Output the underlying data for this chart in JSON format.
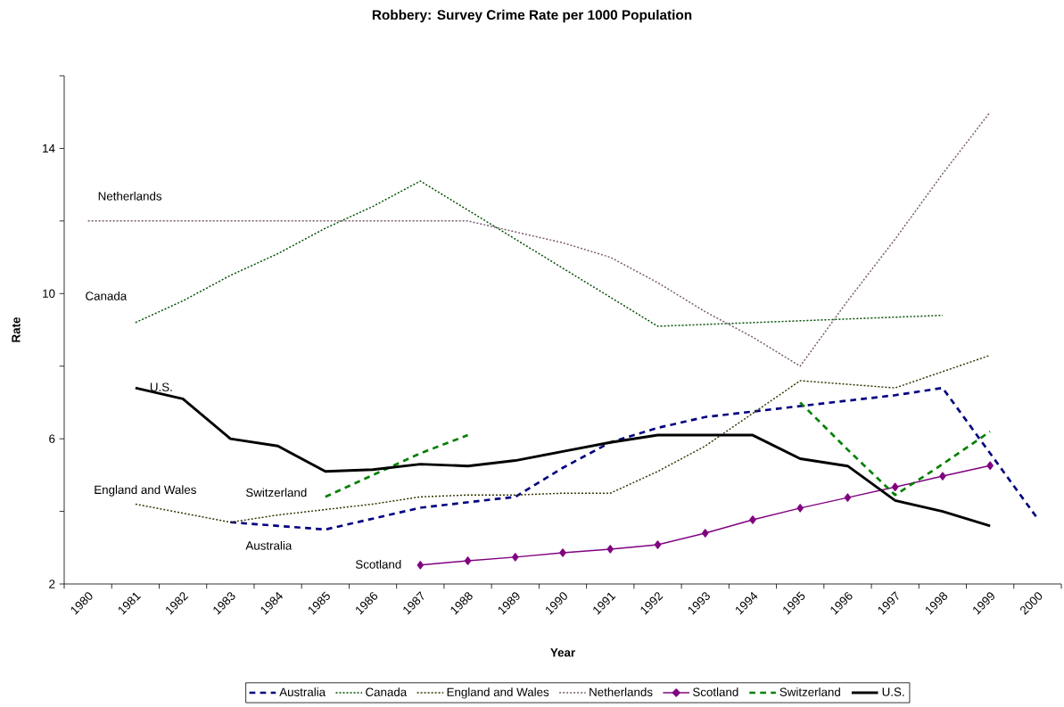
{
  "chart_data": {
    "type": "line",
    "title": "Robbery: Survey Crime Rate per 1000 Population",
    "xlabel": "Year",
    "ylabel": "Rate",
    "categories": [
      "1980",
      "1981",
      "1982",
      "1983",
      "1984",
      "1985",
      "1986",
      "1987",
      "1988",
      "1989",
      "1990",
      "1991",
      "1992",
      "1993",
      "1994",
      "1995",
      "1996",
      "1997",
      "1998",
      "1999",
      "2000"
    ],
    "ylim": [
      2,
      16
    ],
    "yticks": [
      2,
      {
        "value": 4,
        "label": null
      },
      6,
      {
        "value": 8,
        "label": null
      },
      10,
      {
        "value": 12,
        "label": null
      },
      14,
      {
        "value": 16,
        "label": null
      }
    ],
    "grid": false,
    "legend": "bottom",
    "series": [
      {
        "name": "Australia",
        "color": "#000080",
        "line_style": "dashed",
        "marker": "none",
        "values": [
          null,
          null,
          null,
          3.7,
          3.6,
          3.5,
          3.8,
          4.1,
          4.25,
          4.4,
          5.2,
          5.9,
          6.3,
          6.6,
          6.75,
          6.9,
          7.05,
          7.2,
          7.4,
          5.6,
          3.8
        ]
      },
      {
        "name": "Canada",
        "color": "#004d00",
        "line_style": "dotted",
        "marker": "none",
        "values": [
          null,
          9.2,
          9.8,
          10.5,
          11.1,
          11.8,
          12.4,
          13.1,
          12.3,
          11.5,
          10.7,
          9.9,
          9.1,
          9.15,
          9.2,
          9.25,
          9.3,
          9.35,
          9.4,
          null,
          null
        ]
      },
      {
        "name": "England and Wales",
        "color": "#333300",
        "line_style": "dotted",
        "marker": "none",
        "values": [
          null,
          4.2,
          3.95,
          3.7,
          3.9,
          4.05,
          4.2,
          4.4,
          4.45,
          4.45,
          4.5,
          4.5,
          5.1,
          5.8,
          6.7,
          7.6,
          7.5,
          7.4,
          7.85,
          8.3,
          null
        ]
      },
      {
        "name": "Netherlands",
        "color": "#7a5a70",
        "line_style": "dotted",
        "marker": "none",
        "values": [
          12,
          12,
          12,
          12,
          12,
          12,
          12,
          12,
          12,
          11.7,
          11.4,
          11.0,
          10.3,
          9.5,
          8.8,
          8.0,
          9.8,
          11.5,
          13.3,
          15.0,
          null
        ]
      },
      {
        "name": "Scotland",
        "color": "#800080",
        "line_style": "solid",
        "marker": "diamond",
        "values": [
          null,
          null,
          null,
          null,
          null,
          null,
          null,
          2.52,
          2.64,
          2.74,
          2.86,
          2.96,
          3.08,
          3.4,
          3.77,
          4.09,
          4.38,
          4.67,
          4.97,
          5.26,
          null
        ]
      },
      {
        "name": "Switzerland",
        "color": "#008000",
        "line_style": "dashed",
        "marker": "none",
        "values": [
          null,
          null,
          null,
          null,
          null,
          4.4,
          5.0,
          5.6,
          6.1,
          null,
          null,
          null,
          null,
          null,
          null,
          7.0,
          5.7,
          4.45,
          5.3,
          6.2,
          null
        ]
      },
      {
        "name": "U.S.",
        "color": "#000000",
        "line_style": "solid",
        "marker": "none",
        "values": [
          null,
          7.4,
          7.1,
          6.0,
          5.8,
          5.1,
          5.15,
          5.3,
          5.25,
          5.4,
          5.65,
          5.9,
          6.1,
          6.1,
          6.1,
          5.45,
          5.25,
          4.3,
          4.0,
          3.6,
          null
        ]
      }
    ],
    "annotations": [
      "Australia",
      "Canada",
      "England and Wales",
      "Netherlands",
      "Scotland",
      "Switzerland",
      "U.S."
    ]
  }
}
